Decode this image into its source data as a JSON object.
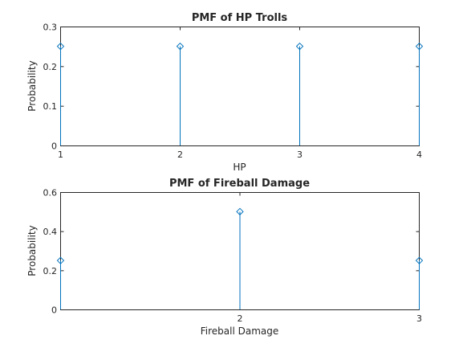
{
  "chart_data": [
    {
      "type": "stem",
      "title": "PMF of HP Trolls",
      "xlabel": "HP",
      "ylabel": "Probability",
      "xlim": [
        1,
        4
      ],
      "ylim": [
        0,
        0.3
      ],
      "xticks": [
        1,
        2,
        3,
        4
      ],
      "yticks": [
        0,
        0.1,
        0.2,
        0.3
      ],
      "x": [
        1,
        2,
        3,
        4
      ],
      "values": [
        0.25,
        0.25,
        0.25,
        0.25
      ],
      "grid": false,
      "color": "#0072BD",
      "marker": "diamond"
    },
    {
      "type": "stem",
      "title": "PMF of Fireball Damage",
      "xlabel": "Fireball Damage",
      "ylabel": "Probability",
      "xlim": [
        1,
        3
      ],
      "ylim": [
        0,
        0.6
      ],
      "xticks": [
        2,
        3
      ],
      "yticks": [
        0,
        0.2,
        0.4,
        0.6
      ],
      "x": [
        1,
        2,
        3
      ],
      "values": [
        0.25,
        0.5,
        0.25
      ],
      "grid": false,
      "color": "#0072BD",
      "marker": "diamond"
    }
  ]
}
